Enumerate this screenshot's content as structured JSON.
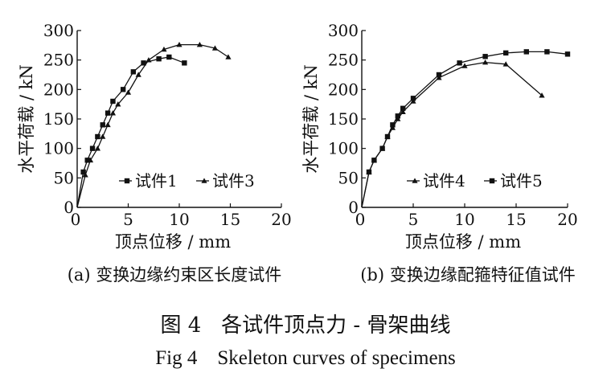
{
  "chart_data": [
    {
      "type": "line",
      "panel_caption": "(a) 变换边缘约束区长度试件",
      "xlabel": "顶点位移 / mm",
      "ylabel": "水平荷载 / kN",
      "xlim": [
        0,
        20
      ],
      "ylim": [
        0,
        300
      ],
      "xticks": [
        "0",
        "5",
        "10",
        "15",
        "20"
      ],
      "yticks": [
        "0",
        "50",
        "100",
        "150",
        "200",
        "250",
        "300"
      ],
      "legend_position": "lower-right",
      "series": [
        {
          "name": "试件1",
          "marker": "square",
          "x": [
            0,
            0.6,
            1.0,
            1.5,
            2.0,
            2.5,
            3.0,
            3.5,
            4.5,
            5.5,
            6.5,
            8.0,
            9.0,
            10.5
          ],
          "y": [
            0,
            60,
            80,
            100,
            120,
            140,
            160,
            180,
            200,
            230,
            245,
            252,
            255,
            245
          ]
        },
        {
          "name": "试件3",
          "marker": "triangle",
          "x": [
            0,
            0.8,
            1.3,
            2.0,
            2.5,
            3.0,
            3.5,
            4.0,
            5.0,
            6.0,
            7.0,
            8.5,
            10.0,
            12.0,
            13.5,
            14.8
          ],
          "y": [
            0,
            55,
            80,
            100,
            120,
            140,
            160,
            175,
            195,
            225,
            250,
            268,
            276,
            276,
            270,
            255
          ]
        }
      ]
    },
    {
      "type": "line",
      "panel_caption": "(b) 变换边缘配箍特征值试件",
      "xlabel": "顶点位移 / mm",
      "ylabel": "水平荷载 / kN",
      "xlim": [
        0,
        20
      ],
      "ylim": [
        0,
        300
      ],
      "xticks": [
        "0",
        "5",
        "10",
        "15",
        "20"
      ],
      "yticks": [
        "0",
        "50",
        "100",
        "150",
        "200",
        "250",
        "300"
      ],
      "legend_position": "lower-right",
      "series": [
        {
          "name": "试件4",
          "marker": "triangle",
          "x": [
            0,
            0.7,
            1.2,
            2.0,
            2.5,
            3.0,
            3.5,
            4.0,
            5.0,
            7.5,
            10.0,
            12.0,
            14.0,
            17.5
          ],
          "y": [
            0,
            60,
            80,
            100,
            120,
            135,
            150,
            162,
            180,
            220,
            240,
            246,
            243,
            190
          ]
        },
        {
          "name": "试件5",
          "marker": "square",
          "x": [
            0,
            0.7,
            1.2,
            2.0,
            2.5,
            3.0,
            3.5,
            4.0,
            5.0,
            7.5,
            9.5,
            12.0,
            14.0,
            16.0,
            18.0,
            20.0
          ],
          "y": [
            0,
            60,
            80,
            100,
            120,
            140,
            155,
            168,
            185,
            225,
            245,
            256,
            262,
            264,
            264,
            260
          ]
        }
      ]
    }
  ],
  "captions": {
    "figure_cn": "图 4   各试件顶点力 - 骨架曲线",
    "figure_en": "Fig 4    Skeleton curves of specimens"
  }
}
